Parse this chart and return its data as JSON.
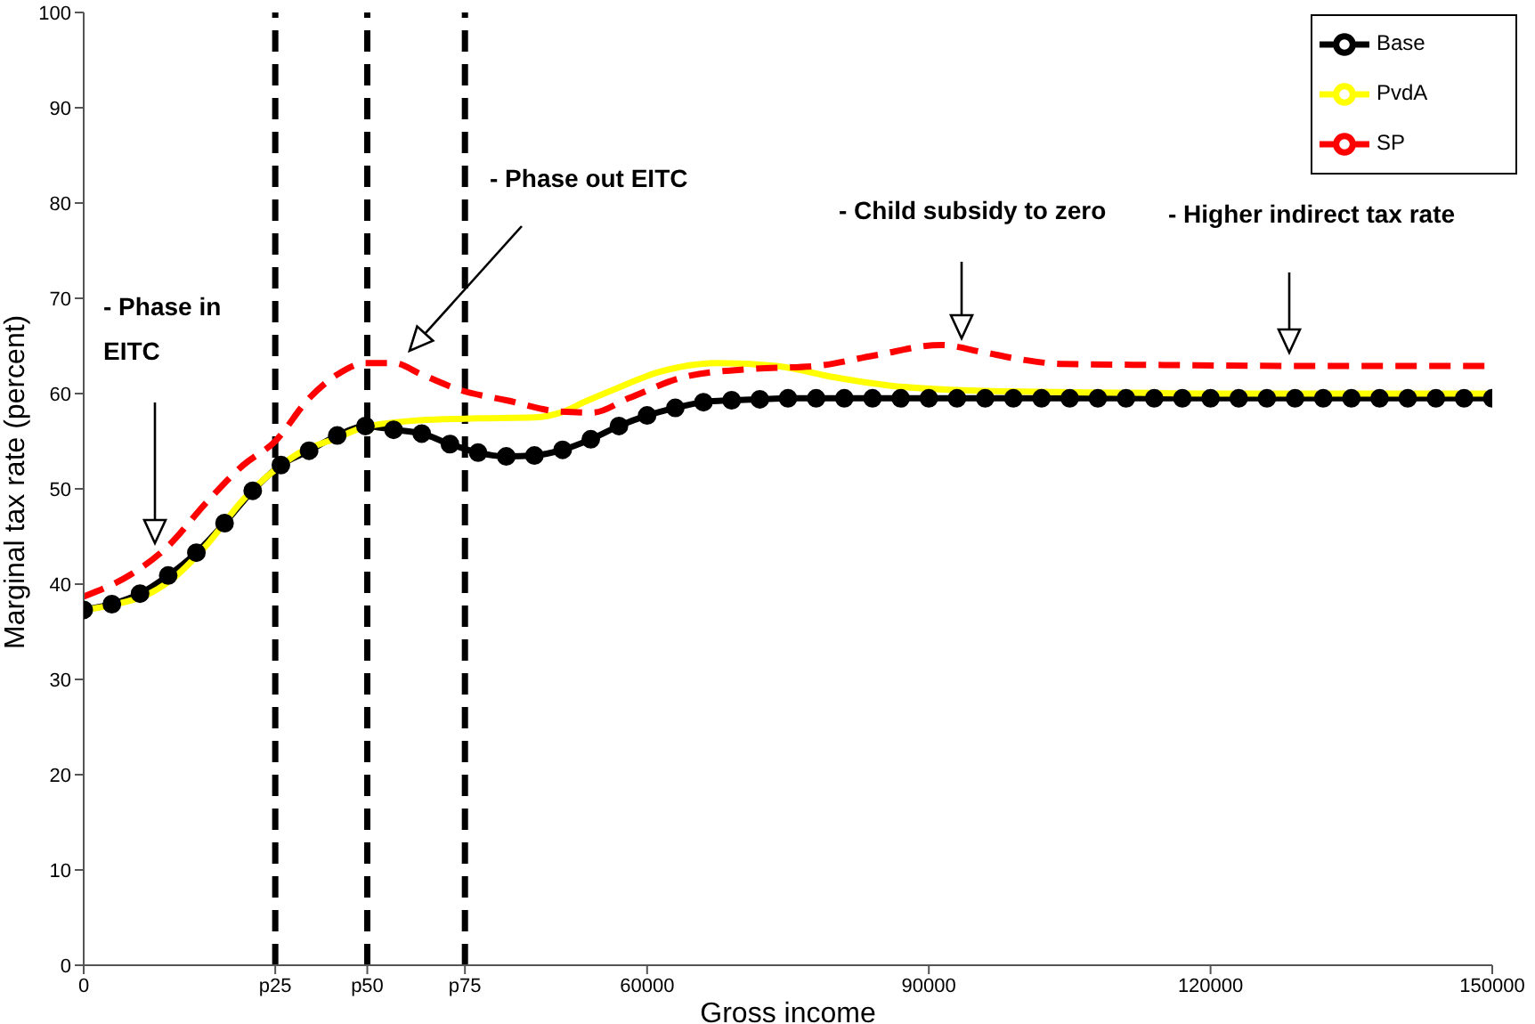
{
  "chart_data": {
    "type": "line",
    "xlabel": "Gross income",
    "ylabel": "Marginal tax rate (percent)",
    "xlim": [
      0,
      150000
    ],
    "xticks": [
      0,
      {
        "value": 20400,
        "label": "p25"
      },
      {
        "value": 30200,
        "label": "p50"
      },
      {
        "value": 40600,
        "label": "p75"
      },
      60000,
      90000,
      120000,
      150000
    ],
    "ylim": [
      0,
      100
    ],
    "yticks": [
      0,
      10,
      20,
      30,
      40,
      50,
      60,
      70,
      80,
      90,
      100
    ],
    "grid": false,
    "legend": "top right",
    "ref_lines": [
      {
        "axis": "x",
        "value": 20400,
        "color": "#000000",
        "line_style": "dashed"
      },
      {
        "axis": "x",
        "value": 30200,
        "color": "#000000",
        "line_style": "dashed"
      },
      {
        "axis": "x",
        "value": 40600,
        "color": "#000000",
        "line_style": "dashed"
      }
    ],
    "annotations": [
      "- Phase in EITC",
      "- Phase out EITC",
      "- Child subsidy to zero",
      "- Higher indirect tax rate"
    ],
    "series": [
      {
        "name": "Base",
        "color": "#000000",
        "marker": "circle",
        "line_style": "solid",
        "x": [
          0,
          3000,
          6000,
          9000,
          12000,
          15000,
          18000,
          21000,
          24000,
          27000,
          30000,
          33000,
          36000,
          39000,
          42000,
          45000,
          48000,
          51000,
          54000,
          57000,
          60000,
          63000,
          66000,
          69000,
          72000,
          75000,
          78000,
          81000,
          84000,
          87000,
          90000,
          93000,
          96000,
          99000,
          102000,
          105000,
          108000,
          111000,
          114000,
          117000,
          120000,
          123000,
          126000,
          129000,
          132000,
          135000,
          138000,
          141000,
          144000,
          147000,
          150000
        ],
        "values": [
          37.3,
          37.9,
          39.0,
          40.9,
          43.3,
          46.4,
          49.8,
          52.5,
          54.0,
          55.6,
          56.6,
          56.2,
          55.8,
          54.7,
          53.8,
          53.4,
          53.5,
          54.1,
          55.2,
          56.6,
          57.7,
          58.5,
          59.1,
          59.3,
          59.4,
          59.5,
          59.5,
          59.5,
          59.5,
          59.5,
          59.5,
          59.5,
          59.5,
          59.5,
          59.5,
          59.5,
          59.5,
          59.5,
          59.5,
          59.5,
          59.5,
          59.5,
          59.5,
          59.5,
          59.5,
          59.5,
          59.5,
          59.5,
          59.5,
          59.5,
          59.5
        ]
      },
      {
        "name": "PvdA",
        "color": "#ffff00",
        "marker": "none",
        "line_style": "solid",
        "x": [
          0,
          3000,
          7000,
          10000,
          13000,
          17000,
          20400,
          23000,
          26600,
          30000,
          35800,
          42000,
          48000,
          50800,
          53500,
          56400,
          61400,
          67600,
          73800,
          80000,
          86200,
          92400,
          100000,
          110000,
          120000,
          135000,
          150000
        ],
        "values": [
          37.3,
          37.8,
          39.0,
          41.0,
          44.0,
          48.9,
          52.0,
          53.8,
          55.2,
          56.5,
          57.2,
          57.4,
          57.5,
          58.0,
          59.2,
          60.4,
          62.3,
          63.2,
          62.9,
          61.7,
          60.8,
          60.4,
          60.2,
          60.1,
          60.0,
          60.0,
          60.0
        ]
      },
      {
        "name": "SP",
        "color": "#ff0000",
        "marker": "none",
        "line_style": "dashed",
        "x": [
          0,
          5000,
          9000,
          13000,
          17000,
          20400,
          24000,
          27000,
          30000,
          33000,
          36000,
          40000,
          45000,
          50800,
          54200,
          58000,
          64200,
          71300,
          78000,
          84200,
          91300,
          95500,
          99700,
          104300,
          115000,
          130000,
          150000
        ],
        "values": [
          38.7,
          41.0,
          44.0,
          48.5,
          52.5,
          55.0,
          59.5,
          62.0,
          63.2,
          63.2,
          62.0,
          60.4,
          59.3,
          58.1,
          58.0,
          59.5,
          61.8,
          62.6,
          62.9,
          64.0,
          65.1,
          64.4,
          63.6,
          63.1,
          63.0,
          62.9,
          62.9
        ]
      }
    ]
  }
}
